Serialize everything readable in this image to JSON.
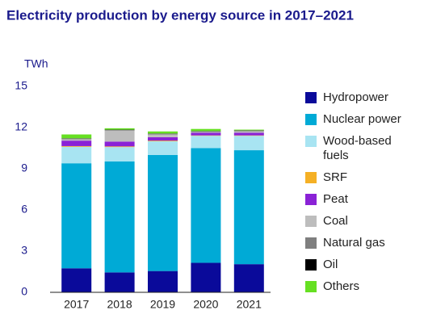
{
  "chart_data": {
    "type": "stacked_bar",
    "title": "Electricity production by energy source in 2017–2021",
    "y_label": "TWh",
    "categories": [
      "2017",
      "2018",
      "2019",
      "2020",
      "2021"
    ],
    "series": [
      {
        "name": "Hydropower",
        "color": "#0a0a9a",
        "values": [
          1.75,
          1.45,
          1.55,
          2.15,
          2.05
        ]
      },
      {
        "name": "Nuclear power",
        "color": "#00aad6",
        "values": [
          7.65,
          8.08,
          8.45,
          8.35,
          8.3
        ]
      },
      {
        "name": "Wood-based fuels",
        "color": "#a8e4f2",
        "values": [
          1.2,
          1.05,
          1.0,
          0.9,
          1.05
        ]
      },
      {
        "name": "SRF",
        "color": "#f5b025",
        "values": [
          0.05,
          0.05,
          0.05,
          0.03,
          0.03
        ]
      },
      {
        "name": "Peat",
        "color": "#8a22d6",
        "values": [
          0.4,
          0.35,
          0.25,
          0.2,
          0.2
        ]
      },
      {
        "name": "Coal",
        "color": "#bdbdbd",
        "values": [
          0.1,
          0.8,
          0.2,
          0.05,
          0.1
        ]
      },
      {
        "name": "Natural gas",
        "color": "#7f7f7f",
        "values": [
          0.05,
          0.05,
          0.05,
          0.05,
          0.05
        ]
      },
      {
        "name": "Oil",
        "color": "#000000",
        "values": [
          0.02,
          0.02,
          0.02,
          0.02,
          0.02
        ]
      },
      {
        "name": "Others",
        "color": "#66e022",
        "values": [
          0.28,
          0.1,
          0.15,
          0.15,
          0.05
        ]
      }
    ],
    "ylim": [
      0,
      15
    ],
    "yticks": [
      0,
      3,
      6,
      9,
      12,
      15
    ],
    "legend": "right"
  }
}
